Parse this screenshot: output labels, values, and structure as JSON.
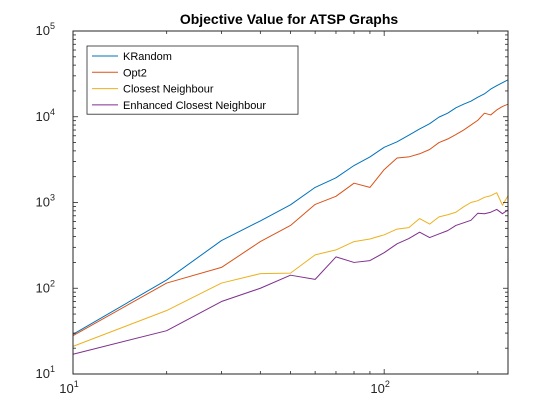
{
  "chart_data": {
    "type": "line",
    "title": "Objective Value for ATSP Graphs",
    "xlabel": "",
    "ylabel": "",
    "xscale": "log",
    "yscale": "log",
    "xlim": [
      10,
      250
    ],
    "ylim": [
      10,
      100000
    ],
    "grid": false,
    "legend_position": "top-left",
    "x_ticks": [
      {
        "value": 10,
        "base": "10",
        "exp": "1"
      },
      {
        "value": 100,
        "base": "10",
        "exp": "2"
      }
    ],
    "y_ticks": [
      {
        "value": 10,
        "base": "10",
        "exp": "1"
      },
      {
        "value": 100,
        "base": "10",
        "exp": "2"
      },
      {
        "value": 1000,
        "base": "10",
        "exp": "3"
      },
      {
        "value": 10000,
        "base": "10",
        "exp": "4"
      },
      {
        "value": 100000,
        "base": "10",
        "exp": "5"
      }
    ],
    "series": [
      {
        "name": "KRandom",
        "color": "#0072BD",
        "x": [
          10,
          20,
          30,
          40,
          50,
          60,
          70,
          80,
          90,
          100,
          110,
          120,
          130,
          140,
          150,
          160,
          170,
          180,
          190,
          200,
          210,
          220,
          230,
          240,
          250
        ],
        "y": [
          29,
          125,
          360,
          610,
          940,
          1500,
          1940,
          2700,
          3400,
          4400,
          5100,
          6100,
          7200,
          8300,
          9900,
          11000,
          12700,
          14000,
          15200,
          16900,
          18500,
          21000,
          23000,
          25000,
          27000
        ]
      },
      {
        "name": "Opt2",
        "color": "#D95319",
        "x": [
          10,
          20,
          30,
          40,
          50,
          60,
          70,
          80,
          90,
          100,
          110,
          120,
          130,
          140,
          150,
          160,
          170,
          180,
          190,
          200,
          210,
          220,
          230,
          240,
          250
        ],
        "y": [
          28,
          115,
          175,
          350,
          540,
          950,
          1180,
          1680,
          1500,
          2420,
          3300,
          3400,
          3700,
          4150,
          5000,
          5500,
          6200,
          7000,
          8000,
          9100,
          11000,
          10500,
          12000,
          13200,
          14000
        ]
      },
      {
        "name": "Closest Neighbour",
        "color": "#EDB120",
        "x": [
          10,
          20,
          30,
          40,
          50,
          60,
          70,
          80,
          90,
          100,
          110,
          120,
          130,
          140,
          150,
          160,
          170,
          180,
          190,
          200,
          210,
          220,
          230,
          240,
          250
        ],
        "y": [
          21,
          55,
          115,
          148,
          150,
          245,
          280,
          350,
          375,
          420,
          490,
          510,
          650,
          560,
          680,
          720,
          770,
          890,
          1000,
          1050,
          1150,
          1200,
          1300,
          930,
          1200
        ]
      },
      {
        "name": "Enhanced Closest Neighbour",
        "color": "#7E2F8E",
        "x": [
          10,
          20,
          30,
          40,
          50,
          60,
          70,
          80,
          90,
          100,
          110,
          120,
          130,
          140,
          150,
          160,
          170,
          180,
          190,
          200,
          210,
          220,
          230,
          240,
          250
        ],
        "y": [
          17,
          32,
          70,
          100,
          142,
          127,
          232,
          200,
          210,
          260,
          330,
          380,
          450,
          390,
          430,
          470,
          540,
          580,
          620,
          750,
          740,
          770,
          830,
          740,
          820
        ]
      }
    ]
  }
}
